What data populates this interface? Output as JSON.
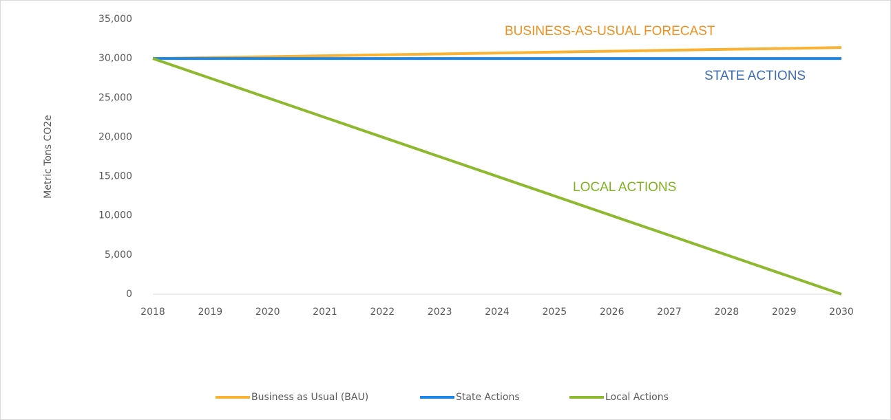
{
  "chart_data": {
    "type": "line",
    "y_label": "Metric Tons CO2e",
    "categories": [
      "2018",
      "2019",
      "2020",
      "2021",
      "2022",
      "2023",
      "2024",
      "2025",
      "2026",
      "2027",
      "2028",
      "2029",
      "2030"
    ],
    "series": [
      {
        "name": "Business as Usual (BAU)",
        "color": "#f9b233",
        "values": [
          30000,
          30120,
          30230,
          30350,
          30470,
          30580,
          30700,
          30820,
          30930,
          31050,
          31170,
          31280,
          31400
        ]
      },
      {
        "name": "State Actions",
        "color": "#1a86e8",
        "values": [
          30000,
          30000,
          30000,
          30000,
          30000,
          30000,
          30000,
          30000,
          30000,
          30000,
          30000,
          30000,
          30000
        ]
      },
      {
        "name": "Local Actions",
        "color": "#8db92e",
        "values": [
          30000,
          27500,
          25000,
          22500,
          20000,
          17500,
          15000,
          12500,
          10000,
          7500,
          5000,
          2500,
          0
        ]
      }
    ],
    "annotations": [
      {
        "text": "BUSINESS-AS-USUAL FORECAST",
        "color": "#f28e1c"
      },
      {
        "text": "STATE ACTIONS",
        "color": "#3d6eb5"
      },
      {
        "text": "LOCAL ACTIONS",
        "color": "#7fb31f"
      }
    ],
    "ylim": [
      0,
      35000
    ],
    "yticks": [
      0,
      {
        "value": 5000,
        "label": "5,000"
      },
      {
        "value": 10000,
        "label": "10,000"
      },
      {
        "value": 15000,
        "label": "15,000"
      },
      {
        "value": 20000,
        "label": "20,000"
      },
      {
        "value": 25000,
        "label": "25,000"
      },
      {
        "value": 30000,
        "label": "30,000"
      },
      {
        "value": 35000,
        "label": "35,000"
      }
    ],
    "grid": false,
    "legend": "bottom"
  }
}
